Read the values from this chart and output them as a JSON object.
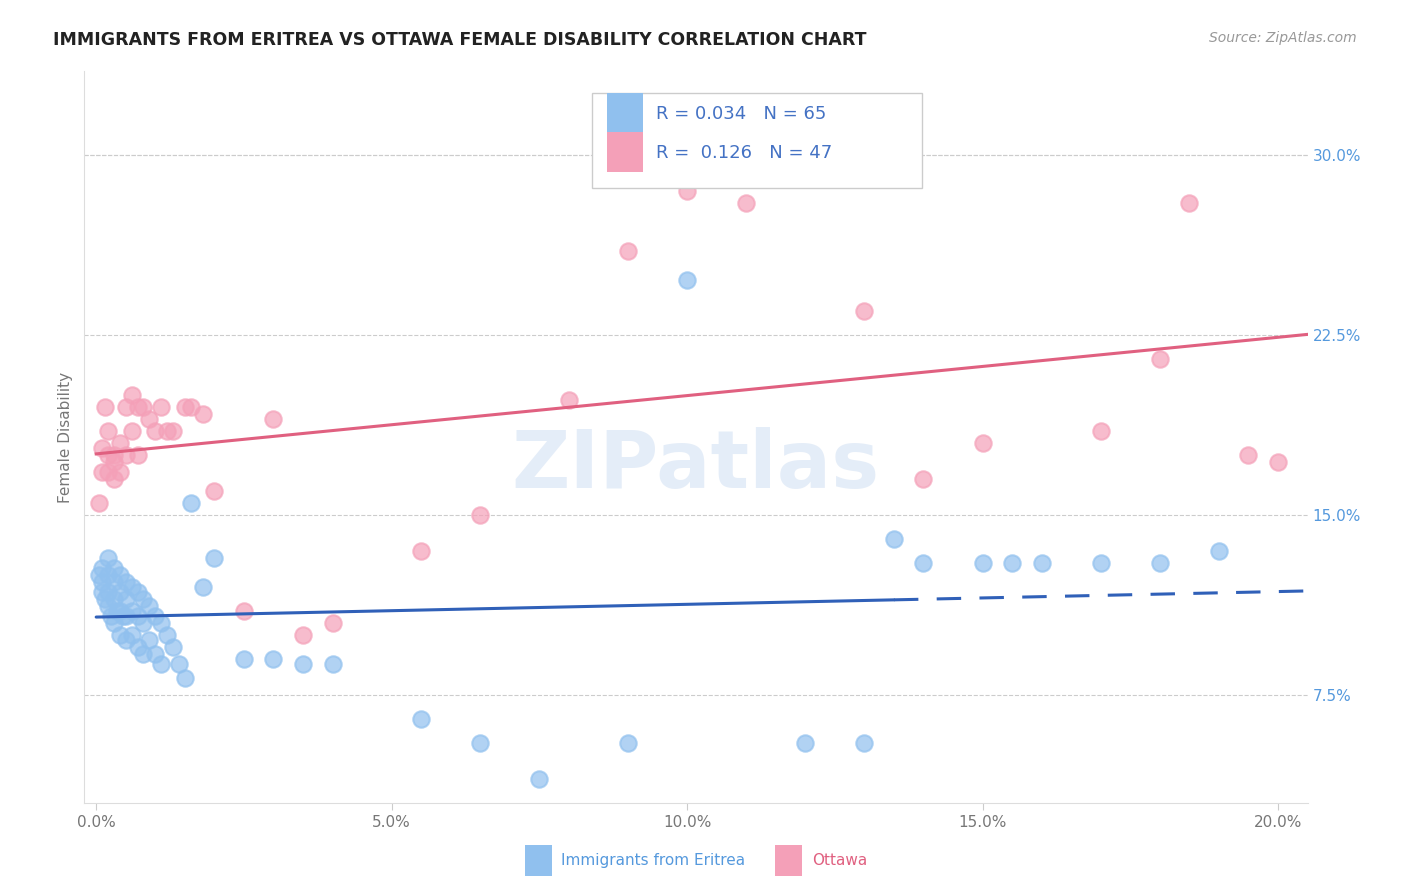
{
  "title": "IMMIGRANTS FROM ERITREA VS OTTAWA FEMALE DISABILITY CORRELATION CHART",
  "source": "Source: ZipAtlas.com",
  "ylabel": "Female Disability",
  "legend_blue_R": "0.034",
  "legend_blue_N": "65",
  "legend_pink_R": "0.126",
  "legend_pink_N": "47",
  "blue_color": "#90C0EE",
  "pink_color": "#F4A0B8",
  "blue_line_color": "#3060B8",
  "pink_line_color": "#E06080",
  "watermark": "ZIPatlas",
  "xlim": [
    -0.002,
    0.205
  ],
  "ylim": [
    0.03,
    0.335
  ],
  "blue_x": [
    0.0005,
    0.001,
    0.001,
    0.001,
    0.0015,
    0.002,
    0.002,
    0.002,
    0.002,
    0.0025,
    0.003,
    0.003,
    0.003,
    0.003,
    0.0035,
    0.004,
    0.004,
    0.004,
    0.004,
    0.0045,
    0.005,
    0.005,
    0.005,
    0.005,
    0.006,
    0.006,
    0.006,
    0.007,
    0.007,
    0.007,
    0.008,
    0.008,
    0.008,
    0.009,
    0.009,
    0.01,
    0.01,
    0.011,
    0.011,
    0.012,
    0.013,
    0.014,
    0.015,
    0.016,
    0.018,
    0.02,
    0.025,
    0.03,
    0.035,
    0.04,
    0.055,
    0.065,
    0.075,
    0.09,
    0.1,
    0.12,
    0.13,
    0.135,
    0.14,
    0.15,
    0.155,
    0.16,
    0.17,
    0.18,
    0.19
  ],
  "blue_y": [
    0.125,
    0.128,
    0.122,
    0.118,
    0.115,
    0.132,
    0.125,
    0.118,
    0.112,
    0.108,
    0.128,
    0.122,
    0.115,
    0.105,
    0.11,
    0.125,
    0.118,
    0.11,
    0.1,
    0.108,
    0.122,
    0.115,
    0.108,
    0.098,
    0.12,
    0.11,
    0.1,
    0.118,
    0.108,
    0.095,
    0.115,
    0.105,
    0.092,
    0.112,
    0.098,
    0.108,
    0.092,
    0.105,
    0.088,
    0.1,
    0.095,
    0.088,
    0.082,
    0.155,
    0.12,
    0.132,
    0.09,
    0.09,
    0.088,
    0.088,
    0.065,
    0.055,
    0.04,
    0.055,
    0.248,
    0.055,
    0.055,
    0.14,
    0.13,
    0.13,
    0.13,
    0.13,
    0.13,
    0.13,
    0.135
  ],
  "pink_x": [
    0.0005,
    0.001,
    0.001,
    0.0015,
    0.002,
    0.002,
    0.002,
    0.003,
    0.003,
    0.003,
    0.004,
    0.004,
    0.005,
    0.005,
    0.006,
    0.006,
    0.007,
    0.007,
    0.008,
    0.009,
    0.01,
    0.011,
    0.012,
    0.013,
    0.015,
    0.016,
    0.018,
    0.02,
    0.025,
    0.03,
    0.035,
    0.04,
    0.055,
    0.065,
    0.08,
    0.09,
    0.1,
    0.11,
    0.12,
    0.13,
    0.14,
    0.15,
    0.17,
    0.18,
    0.185,
    0.195,
    0.2
  ],
  "pink_y": [
    0.155,
    0.178,
    0.168,
    0.195,
    0.175,
    0.168,
    0.185,
    0.172,
    0.165,
    0.175,
    0.18,
    0.168,
    0.195,
    0.175,
    0.2,
    0.185,
    0.195,
    0.175,
    0.195,
    0.19,
    0.185,
    0.195,
    0.185,
    0.185,
    0.195,
    0.195,
    0.192,
    0.16,
    0.11,
    0.19,
    0.1,
    0.105,
    0.135,
    0.15,
    0.198,
    0.26,
    0.285,
    0.28,
    0.3,
    0.235,
    0.165,
    0.18,
    0.185,
    0.215,
    0.28,
    0.175,
    0.172
  ]
}
